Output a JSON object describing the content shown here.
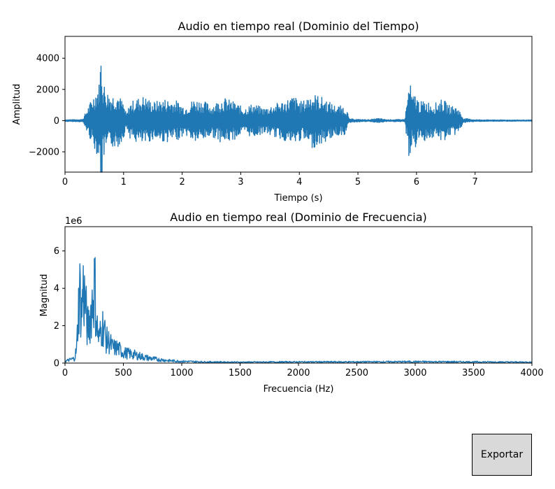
{
  "window": {
    "export_label": "Exportar"
  },
  "chart_data": [
    {
      "type": "line",
      "title": "Audio en tiempo real (Dominio del Tiempo)",
      "xlabel": "Tiempo (s)",
      "ylabel": "Amplitud",
      "xlim": [
        0,
        7.97
      ],
      "ylim": [
        -3300,
        5400
      ],
      "xticks": [
        0,
        1,
        2,
        3,
        4,
        5,
        6,
        7
      ],
      "xtick_labels": [
        "0",
        "1",
        "2",
        "3",
        "4",
        "5",
        "6",
        "7"
      ],
      "yticks": [
        -2000,
        0,
        2000,
        4000
      ],
      "ytick_labels": [
        "−2000",
        "0",
        "2000",
        "4000"
      ],
      "color": "#1f77b4",
      "series": [
        {
          "x": [
            0,
            0.3,
            0.55,
            0.58,
            0.62,
            0.65,
            0.68,
            0.72,
            0.8,
            0.9,
            1.0,
            1.05,
            1.1,
            1.2,
            1.35,
            1.5,
            1.7,
            1.9,
            2.05,
            2.2,
            2.35,
            2.5,
            2.7,
            2.9,
            3.05,
            3.2,
            3.4,
            3.6,
            3.75,
            3.9,
            4.05,
            4.2,
            4.4,
            4.6,
            4.8,
            4.85,
            5.0,
            5.2,
            5.35,
            5.5,
            5.8,
            5.88,
            5.93,
            5.98,
            6.05,
            6.15,
            6.3,
            6.45,
            6.55,
            6.7,
            6.8,
            7.0,
            7.3,
            7.97
          ],
          "env": [
            60,
            80,
            2200,
            2400,
            4800,
            2600,
            2300,
            1900,
            1700,
            1800,
            1100,
            400,
            1100,
            1400,
            1600,
            1200,
            1400,
            1300,
            900,
            1400,
            1300,
            1000,
            1500,
            1200,
            800,
            1100,
            800,
            1100,
            1300,
            1600,
            1200,
            1800,
            1500,
            1000,
            900,
            120,
            80,
            60,
            150,
            60,
            80,
            2700,
            1500,
            1800,
            1200,
            1300,
            1100,
            1400,
            1000,
            900,
            150,
            60,
            50,
            40
          ]
        }
      ]
    },
    {
      "type": "line",
      "title": "Audio en tiempo real (Dominio de Frecuencia)",
      "xlabel": "Frecuencia (Hz)",
      "ylabel": "Magnitud",
      "offset_text": "1e6",
      "xlim": [
        0,
        4000
      ],
      "ylim": [
        0,
        7300000
      ],
      "xticks": [
        0,
        500,
        1000,
        1500,
        2000,
        2500,
        3000,
        3500,
        4000
      ],
      "xtick_labels": [
        "0",
        "500",
        "1000",
        "1500",
        "2000",
        "2500",
        "3000",
        "3500",
        "4000"
      ],
      "yticks": [
        0,
        2000000,
        4000000,
        6000000
      ],
      "ytick_labels": [
        "0",
        "2",
        "4",
        "6"
      ],
      "color": "#1f77b4",
      "series": [
        {
          "x": [
            0,
            50,
            80,
            100,
            110,
            125,
            140,
            155,
            175,
            190,
            210,
            230,
            255,
            270,
            290,
            310,
            330,
            350,
            380,
            410,
            450,
            500,
            550,
            600,
            700,
            800,
            900,
            1000,
            1200,
            1500,
            2000,
            2500,
            3000,
            3500,
            4000
          ],
          "env": [
            150000,
            300000,
            400000,
            1200000,
            3500000,
            6500000,
            4000000,
            6300000,
            5200000,
            3000000,
            3500000,
            5000000,
            6700000,
            3500000,
            2000000,
            2800000,
            3300000,
            2000000,
            1800000,
            1300000,
            1300000,
            900000,
            800000,
            700000,
            450000,
            300000,
            200000,
            150000,
            100000,
            80000,
            100000,
            100000,
            120000,
            100000,
            80000
          ]
        }
      ]
    }
  ]
}
